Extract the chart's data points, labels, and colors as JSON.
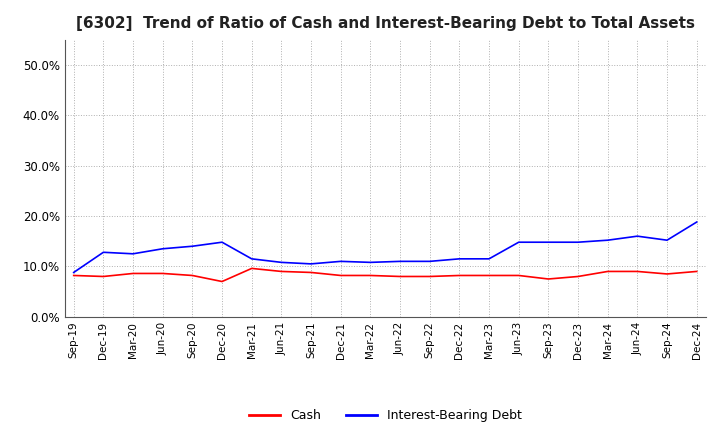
{
  "title": "[6302]  Trend of Ratio of Cash and Interest-Bearing Debt to Total Assets",
  "x_labels": [
    "Sep-19",
    "Dec-19",
    "Mar-20",
    "Jun-20",
    "Sep-20",
    "Dec-20",
    "Mar-21",
    "Jun-21",
    "Sep-21",
    "Dec-21",
    "Mar-22",
    "Jun-22",
    "Sep-22",
    "Dec-22",
    "Mar-23",
    "Jun-23",
    "Sep-23",
    "Dec-23",
    "Mar-24",
    "Jun-24",
    "Sep-24",
    "Dec-24"
  ],
  "cash": [
    0.082,
    0.08,
    0.086,
    0.086,
    0.082,
    0.07,
    0.096,
    0.09,
    0.088,
    0.082,
    0.082,
    0.08,
    0.08,
    0.082,
    0.082,
    0.082,
    0.075,
    0.08,
    0.09,
    0.09,
    0.085,
    0.09
  ],
  "interest_bearing_debt": [
    0.088,
    0.128,
    0.125,
    0.135,
    0.14,
    0.148,
    0.115,
    0.108,
    0.105,
    0.11,
    0.108,
    0.11,
    0.11,
    0.115,
    0.115,
    0.148,
    0.148,
    0.148,
    0.152,
    0.16,
    0.152,
    0.188
  ],
  "cash_color": "#ff0000",
  "debt_color": "#0000ff",
  "ylim": [
    0.0,
    0.55
  ],
  "yticks": [
    0.0,
    0.1,
    0.2,
    0.3,
    0.4,
    0.5
  ],
  "background_color": "#ffffff",
  "grid_color": "#b0b0b0",
  "title_fontsize": 11,
  "line_width": 1.2
}
